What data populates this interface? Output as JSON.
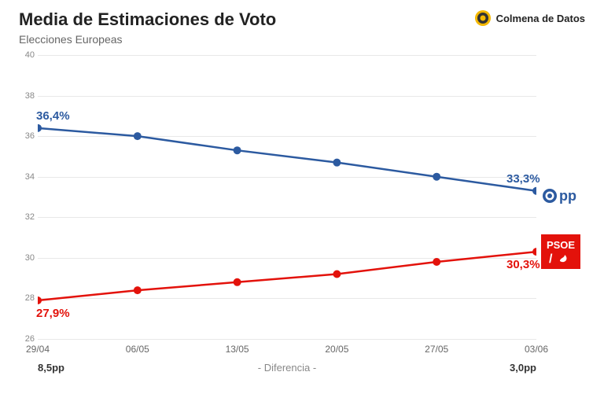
{
  "header": {
    "title": "Media de Estimaciones de Voto",
    "subtitle": "Elecciones Europeas",
    "brand": "Colmena de Datos"
  },
  "chart": {
    "type": "line",
    "background_color": "#ffffff",
    "grid_color": "#e8e8e8",
    "axis_text_color": "#888888",
    "ylim": [
      26,
      40
    ],
    "ytick_step": 2,
    "yticks": [
      26,
      28,
      30,
      32,
      34,
      36,
      38,
      40
    ],
    "xcategories": [
      "29/04",
      "06/05",
      "13/05",
      "20/05",
      "27/05",
      "03/06"
    ],
    "series": [
      {
        "id": "pp",
        "name": "PP",
        "color": "#2c5aa0",
        "line_width": 2.5,
        "marker": "circle",
        "marker_size": 5,
        "values": [
          36.4,
          36.0,
          35.3,
          34.7,
          34.0,
          33.3
        ],
        "start_label": "36,4%",
        "end_label": "33,3%",
        "logo_bg": "#ffffff",
        "logo_text": "pp"
      },
      {
        "id": "psoe",
        "name": "PSOE",
        "color": "#e3120b",
        "line_width": 2.5,
        "marker": "circle",
        "marker_size": 5,
        "values": [
          27.9,
          28.4,
          28.8,
          29.2,
          29.8,
          30.3
        ],
        "start_label": "27,9%",
        "end_label": "30,3%",
        "logo_bg": "#e3120b",
        "logo_text": "PSOE"
      }
    ]
  },
  "footer": {
    "diff_start": "8,5pp",
    "diff_label": "- Diferencia -",
    "diff_end": "3,0pp"
  }
}
